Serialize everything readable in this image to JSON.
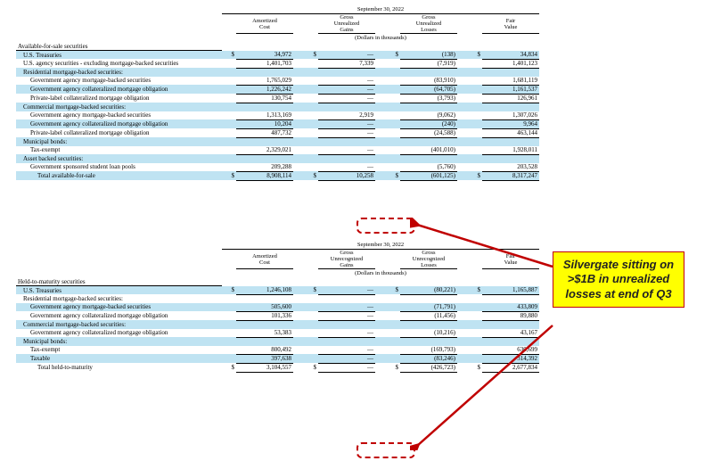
{
  "date": "September 30, 2022",
  "unit": "(Dollars in thousands)",
  "cols": [
    "Amortized Cost",
    "Gross Unrealized Gains",
    "Gross Unrealized Losses",
    "Fair Value"
  ],
  "afs": {
    "header": "Available-for-sale securities",
    "rows": [
      {
        "label": "U.S. Treasuries",
        "vals": [
          "34,972",
          "—",
          "(138)",
          "34,834"
        ],
        "band": true,
        "ind": 1,
        "dollar": true
      },
      {
        "label": "U.S. agency securities - excluding mortgage-backed securities",
        "vals": [
          "1,401,703",
          "7,339",
          "(7,919)",
          "1,401,123"
        ],
        "ind": 1
      },
      {
        "label": "Residential mortgage-backed securities:",
        "vals": [
          "",
          "",
          "",
          ""
        ],
        "band": true,
        "ind": 1,
        "nobord": true
      },
      {
        "label": "Government agency mortgage-backed securities",
        "vals": [
          "1,765,029",
          "—",
          "(83,910)",
          "1,681,119"
        ],
        "ind": 2
      },
      {
        "label": "Government agency collateralized mortgage obligation",
        "vals": [
          "1,226,242",
          "—",
          "(64,705)",
          "1,161,537"
        ],
        "band": true,
        "ind": 2
      },
      {
        "label": "Private-label collateralized mortgage obligation",
        "vals": [
          "130,754",
          "—",
          "(3,793)",
          "126,961"
        ],
        "ind": 2
      },
      {
        "label": "Commercial mortgage-backed securities:",
        "vals": [
          "",
          "",
          "",
          ""
        ],
        "band": true,
        "ind": 1,
        "nobord": true
      },
      {
        "label": "Government agency mortgage-backed securities",
        "vals": [
          "1,313,169",
          "2,919",
          "(9,062)",
          "1,307,026"
        ],
        "ind": 2
      },
      {
        "label": "Government agency collateralized mortgage obligation",
        "vals": [
          "10,204",
          "—",
          "(240)",
          "9,964"
        ],
        "band": true,
        "ind": 2
      },
      {
        "label": "Private-label collateralized mortgage obligation",
        "vals": [
          "487,732",
          "—",
          "(24,588)",
          "463,144"
        ],
        "ind": 2
      },
      {
        "label": "Municipal bonds:",
        "vals": [
          "",
          "",
          "",
          ""
        ],
        "band": true,
        "ind": 1,
        "nobord": true
      },
      {
        "label": "Tax-exempt",
        "vals": [
          "2,329,021",
          "—",
          "(401,010)",
          "1,928,011"
        ],
        "ind": 2
      },
      {
        "label": "Asset backed securities:",
        "vals": [
          "",
          "",
          "",
          ""
        ],
        "band": true,
        "ind": 1,
        "nobord": true
      },
      {
        "label": "Government sponsored student loan pools",
        "vals": [
          "209,288",
          "—",
          "(5,760)",
          "203,528"
        ],
        "ind": 2
      }
    ],
    "total": {
      "label": "Total available-for-sale",
      "vals": [
        "8,908,114",
        "10,258",
        "(601,125)",
        "8,317,247"
      ],
      "band": true,
      "ind": 3,
      "dollar": true,
      "dbl": true
    }
  },
  "cols2": [
    "Amortized Cost",
    "Gross Unrecognized Gains",
    "Gross Unrecognized Losses",
    "Fair Value"
  ],
  "htm": {
    "header": "Held-to-maturity securities",
    "rows": [
      {
        "label": "U.S. Treasuries",
        "vals": [
          "1,246,108",
          "—",
          "(80,221)",
          "1,165,887"
        ],
        "band": true,
        "ind": 1,
        "dollar": true
      },
      {
        "label": "Residential mortgage-backed securities:",
        "vals": [
          "",
          "",
          "",
          ""
        ],
        "ind": 1,
        "nobord": true
      },
      {
        "label": "Government agency mortgage-backed securities",
        "vals": [
          "505,600",
          "—",
          "(71,791)",
          "433,809"
        ],
        "band": true,
        "ind": 2
      },
      {
        "label": "Government agency collateralized mortgage obligation",
        "vals": [
          "101,336",
          "—",
          "(11,456)",
          "89,880"
        ],
        "ind": 2
      },
      {
        "label": "Commercial mortgage-backed securities:",
        "vals": [
          "",
          "",
          "",
          ""
        ],
        "band": true,
        "ind": 1,
        "nobord": true
      },
      {
        "label": "Government agency collateralized mortgage obligation",
        "vals": [
          "53,383",
          "—",
          "(10,216)",
          "43,167"
        ],
        "ind": 2
      },
      {
        "label": "Municipal bonds:",
        "vals": [
          "",
          "",
          "",
          ""
        ],
        "band": true,
        "ind": 1,
        "nobord": true
      },
      {
        "label": "Tax-exempt",
        "vals": [
          "800,492",
          "—",
          "(169,793)",
          "630,699"
        ],
        "ind": 2
      },
      {
        "label": "Taxable",
        "vals": [
          "397,638",
          "—",
          "(83,246)",
          "314,392"
        ],
        "band": true,
        "ind": 2
      }
    ],
    "total": {
      "label": "Total held-to-maturity",
      "vals": [
        "3,104,557",
        "—",
        "(426,723)",
        "2,677,834"
      ],
      "ind": 3,
      "dollar": true,
      "dbl": true
    }
  },
  "callout": "Silvergate sitting on >$1B in unrealized losses at end of Q3",
  "style": {
    "band_color": "#bfe3f2",
    "highlight_border": "#c00000",
    "callout_bg": "#ffff00",
    "arrow_color": "#c00000"
  }
}
